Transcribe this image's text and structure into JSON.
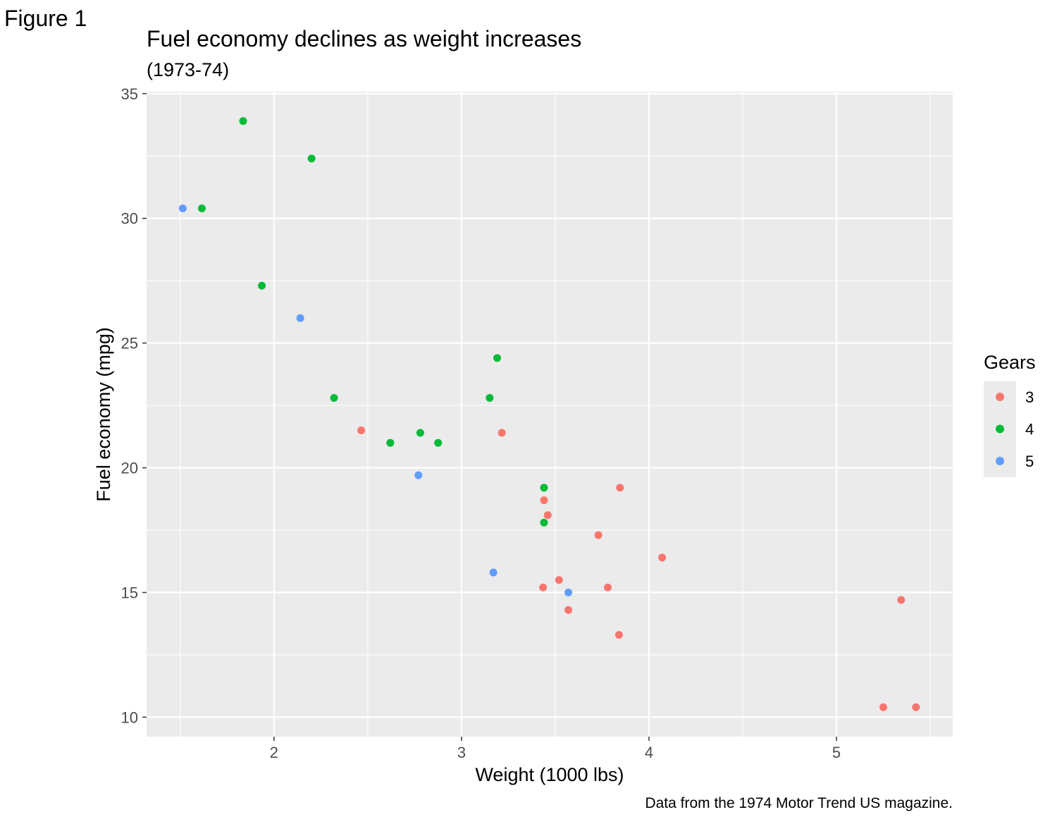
{
  "figure_label": "Figure 1",
  "chart_data": {
    "type": "scatter",
    "title": "Fuel economy declines as weight increases",
    "subtitle": "(1973-74)",
    "xlabel": "Weight (1000 lbs)",
    "ylabel": "Fuel economy (mpg)",
    "caption": "Data from the 1974 Motor Trend US magazine.",
    "xlim": [
      1.32,
      5.62
    ],
    "ylim": [
      9.22,
      35.08
    ],
    "x_ticks": [
      2,
      3,
      4,
      5
    ],
    "x_tick_labels": [
      "2",
      "3",
      "4",
      "5"
    ],
    "y_ticks": [
      10,
      15,
      20,
      25,
      30,
      35
    ],
    "y_tick_labels": [
      "10",
      "15",
      "20",
      "25",
      "30",
      "35"
    ],
    "grid": true,
    "legend": {
      "title": "Gears",
      "position": "right"
    },
    "series": [
      {
        "name": "3",
        "color": "#F8766D",
        "x": [
          2.465,
          3.215,
          3.44,
          3.46,
          3.57,
          3.73,
          3.78,
          3.84,
          3.845,
          4.07,
          5.25,
          5.345,
          5.424,
          3.435,
          3.52
        ],
        "y": [
          21.5,
          21.4,
          18.7,
          18.1,
          14.3,
          17.3,
          15.2,
          13.3,
          19.2,
          16.4,
          10.4,
          14.7,
          10.4,
          15.2,
          15.5
        ]
      },
      {
        "name": "4",
        "color": "#00BA38",
        "x": [
          1.835,
          2.2,
          1.615,
          1.935,
          2.32,
          2.62,
          2.78,
          2.875,
          3.15,
          3.19,
          3.44,
          3.44
        ],
        "y": [
          33.9,
          32.4,
          30.4,
          27.3,
          22.8,
          21.0,
          21.4,
          21.0,
          22.8,
          24.4,
          19.2,
          17.8
        ]
      },
      {
        "name": "5",
        "color": "#619CFF",
        "x": [
          1.513,
          2.14,
          2.77,
          3.17,
          3.57
        ],
        "y": [
          30.4,
          26.0,
          19.7,
          15.8,
          15.0
        ]
      }
    ]
  }
}
